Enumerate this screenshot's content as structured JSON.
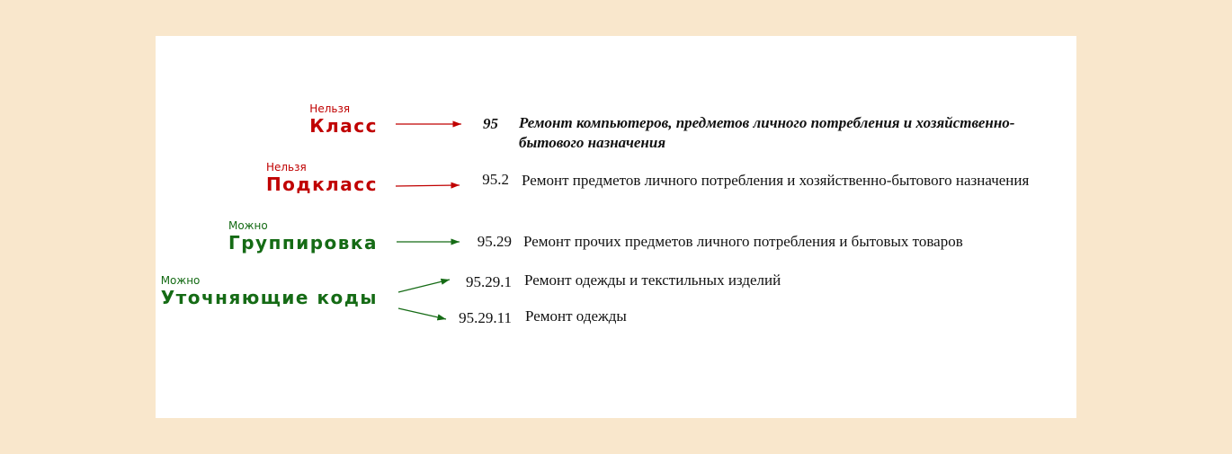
{
  "colors": {
    "forbidden": "#c00000",
    "allowed": "#156b15",
    "background": "#f9e7cc"
  },
  "rows": [
    {
      "status": "Нельзя",
      "level": "Класс",
      "code": "95",
      "description": "Ремонт компьютеров, предметов личного потребления и хозяйственно-бытового назначения"
    },
    {
      "status": "Нельзя",
      "level": "Подкласс",
      "code": "95.2",
      "description": "Ремонт предметов личного потребления и хозяйственно-бытового назначения"
    },
    {
      "status": "Можно",
      "level": "Группировка",
      "code": "95.29",
      "description": "Ремонт прочих предметов личного потребления и бытовых товаров"
    },
    {
      "status": "Можно",
      "level": "Уточняющие коды",
      "code": "95.29.1",
      "description": "Ремонт одежды и текстильных изделий"
    },
    {
      "code": "95.29.11",
      "description": "Ремонт одежды"
    }
  ]
}
